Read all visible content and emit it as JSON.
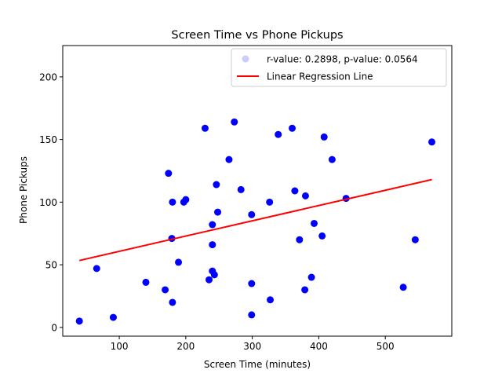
{
  "chart_data": {
    "type": "scatter",
    "title": "Screen Time vs Phone Pickups",
    "xlabel": "Screen Time (minutes)",
    "ylabel": "Phone Pickups",
    "xlim": [
      15,
      600
    ],
    "ylim": [
      -7,
      225
    ],
    "xticks": [
      100,
      200,
      300,
      400,
      500
    ],
    "yticks": [
      0,
      50,
      100,
      150,
      200
    ],
    "grid": false,
    "legend_position": "top-right",
    "series": [
      {
        "name": "r-value: 0.2898, p-value: 0.0564",
        "color": "#0000ff",
        "points": [
          [
            40,
            5
          ],
          [
            66,
            47
          ],
          [
            91,
            8
          ],
          [
            140,
            36
          ],
          [
            169,
            30
          ],
          [
            174,
            123
          ],
          [
            179,
            71
          ],
          [
            180,
            100
          ],
          [
            180,
            20
          ],
          [
            189,
            52
          ],
          [
            197,
            100
          ],
          [
            200,
            102
          ],
          [
            229,
            159
          ],
          [
            235,
            38
          ],
          [
            240,
            45
          ],
          [
            240,
            82
          ],
          [
            240,
            66
          ],
          [
            243,
            42
          ],
          [
            246,
            114
          ],
          [
            248,
            92
          ],
          [
            265,
            134
          ],
          [
            273,
            164
          ],
          [
            283,
            110
          ],
          [
            299,
            35
          ],
          [
            299,
            90
          ],
          [
            299,
            10
          ],
          [
            326,
            100
          ],
          [
            327,
            22
          ],
          [
            339,
            154
          ],
          [
            360,
            159
          ],
          [
            364,
            109
          ],
          [
            371,
            70
          ],
          [
            379,
            30
          ],
          [
            380,
            105
          ],
          [
            389,
            40
          ],
          [
            393,
            83
          ],
          [
            405,
            73
          ],
          [
            408,
            152
          ],
          [
            420,
            134
          ],
          [
            441,
            103
          ],
          [
            527,
            32
          ],
          [
            545,
            70
          ],
          [
            570,
            148
          ]
        ]
      }
    ],
    "regression_line": {
      "name": "Linear Regression Line",
      "color": "#ff0000",
      "x": [
        40,
        570
      ],
      "y": [
        53.4,
        118
      ]
    }
  }
}
